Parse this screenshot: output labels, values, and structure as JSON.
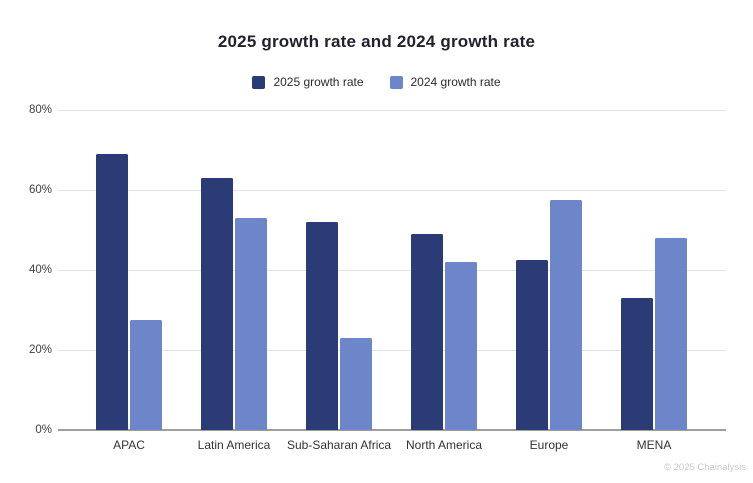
{
  "title": "2025 growth rate and 2024 growth rate",
  "legend": {
    "items": [
      {
        "label": "2025 growth rate",
        "color": "#2b3b76"
      },
      {
        "label": "2024 growth rate",
        "color": "#6d85c9"
      }
    ]
  },
  "footer": {
    "credit": "© 2025 Chainalysis"
  },
  "chart_data": {
    "type": "bar",
    "title": "2025 growth rate and 2024 growth rate",
    "categories": [
      "APAC",
      "Latin America",
      "Sub-Saharan Africa",
      "North America",
      "Europe",
      "MENA"
    ],
    "series": [
      {
        "name": "2025 growth rate",
        "color": "#2b3b76",
        "values": [
          69,
          63,
          52,
          49,
          42.5,
          33
        ]
      },
      {
        "name": "2024 growth rate",
        "color": "#6d85c9",
        "values": [
          27.5,
          53,
          23,
          42,
          57.5,
          48
        ]
      }
    ],
    "xlabel": "",
    "ylabel": "",
    "ylim": [
      0,
      80
    ],
    "ytick_labels": [
      "0%",
      "20%",
      "40%",
      "60%",
      "80%"
    ],
    "grid": true,
    "legend_position": "top-center"
  }
}
